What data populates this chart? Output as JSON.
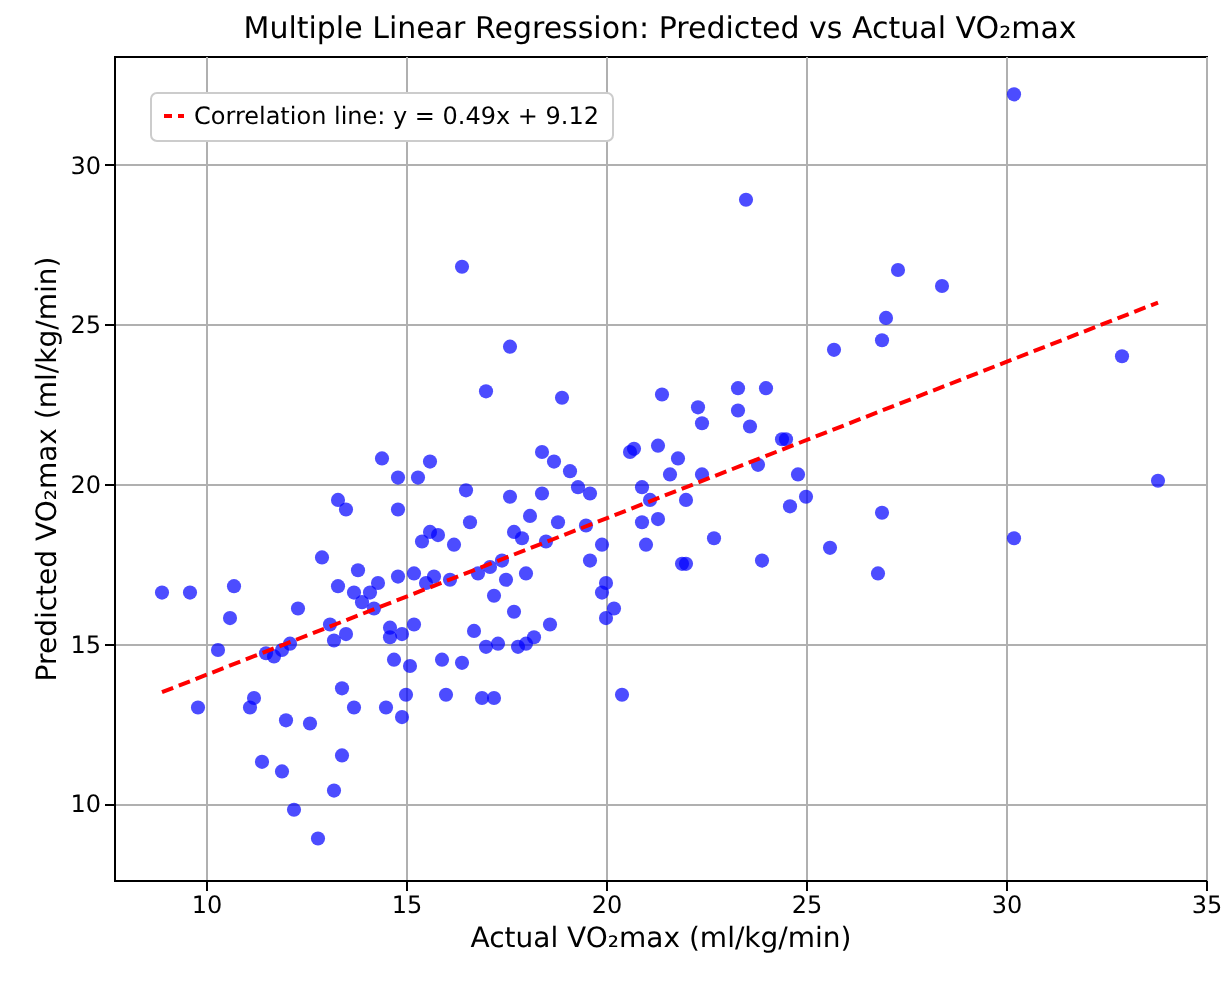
{
  "chart_data": {
    "type": "scatter",
    "title": "Multiple Linear Regression: Predicted vs Actual VO₂max",
    "xlabel": "Actual VO₂max (ml/kg/min)",
    "ylabel": "Predicted VO₂max (ml/kg/min)",
    "xlim": [
      7.7,
      35.0
    ],
    "ylim": [
      7.6,
      33.4
    ],
    "xticks": [
      10,
      15,
      20,
      25,
      30,
      35
    ],
    "yticks": [
      10,
      15,
      20,
      25,
      30
    ],
    "grid": true,
    "legend": "top left",
    "series": [
      {
        "marker": "circle",
        "color": "#0000ff",
        "x": [
          8.9,
          9.6,
          9.8,
          10.3,
          10.6,
          10.7,
          11.1,
          11.2,
          11.4,
          11.5,
          11.7,
          11.9,
          11.9,
          12.0,
          12.1,
          12.2,
          12.3,
          12.6,
          12.8,
          12.9,
          13.1,
          13.2,
          13.2,
          13.3,
          13.4,
          13.4,
          13.3,
          13.5,
          13.5,
          13.7,
          13.7,
          13.8,
          13.9,
          14.1,
          14.2,
          14.3,
          14.4,
          14.5,
          14.6,
          14.6,
          14.7,
          14.8,
          14.8,
          14.8,
          14.9,
          14.9,
          15.0,
          15.1,
          15.2,
          15.2,
          15.3,
          15.4,
          15.5,
          15.6,
          15.6,
          15.7,
          15.8,
          15.9,
          16.0,
          16.1,
          16.2,
          16.4,
          16.4,
          16.5,
          16.6,
          16.7,
          16.8,
          16.9,
          17.0,
          17.0,
          17.1,
          17.2,
          17.2,
          17.3,
          17.4,
          17.5,
          17.6,
          17.7,
          17.6,
          17.7,
          17.8,
          17.9,
          18.0,
          18.0,
          18.1,
          18.2,
          18.4,
          18.4,
          18.5,
          18.6,
          18.7,
          18.8,
          18.9,
          19.1,
          19.3,
          19.5,
          19.6,
          19.6,
          19.9,
          19.9,
          20.0,
          20.0,
          20.2,
          20.4,
          20.6,
          20.7,
          20.9,
          20.9,
          21.0,
          21.1,
          21.3,
          21.3,
          21.4,
          21.6,
          21.8,
          21.9,
          22.0,
          22.0,
          22.3,
          22.4,
          22.4,
          22.7,
          23.3,
          23.3,
          23.5,
          23.6,
          23.8,
          23.9,
          24.0,
          24.4,
          24.5,
          24.6,
          24.8,
          25.0,
          25.6,
          25.7,
          26.8,
          26.9,
          26.9,
          27.0,
          27.3,
          28.4,
          30.2,
          30.2,
          32.9,
          33.8
        ],
        "values": [
          16.6,
          16.6,
          13.0,
          14.8,
          15.8,
          16.8,
          13.0,
          13.3,
          11.3,
          14.7,
          14.6,
          14.8,
          11.0,
          12.6,
          15.0,
          9.8,
          16.1,
          12.5,
          8.9,
          17.7,
          15.6,
          10.4,
          15.1,
          16.8,
          11.5,
          13.6,
          19.5,
          19.2,
          15.3,
          16.6,
          13.0,
          17.3,
          16.3,
          16.6,
          16.1,
          16.9,
          20.8,
          13.0,
          15.2,
          15.5,
          14.5,
          19.2,
          17.1,
          20.2,
          15.3,
          12.7,
          13.4,
          14.3,
          15.6,
          17.2,
          20.2,
          18.2,
          16.9,
          18.5,
          20.7,
          17.1,
          18.4,
          14.5,
          13.4,
          17.0,
          18.1,
          14.4,
          26.8,
          19.8,
          18.8,
          15.4,
          17.2,
          13.3,
          14.9,
          22.9,
          17.4,
          16.5,
          13.3,
          15.0,
          17.6,
          17.0,
          19.6,
          16.0,
          24.3,
          18.5,
          14.9,
          18.3,
          17.2,
          15.0,
          19.0,
          15.2,
          19.7,
          21.0,
          18.2,
          15.6,
          20.7,
          18.8,
          22.7,
          20.4,
          19.9,
          18.7,
          19.7,
          17.6,
          18.1,
          16.6,
          15.8,
          16.9,
          16.1,
          13.4,
          21.0,
          21.1,
          19.9,
          18.8,
          18.1,
          19.5,
          18.9,
          21.2,
          22.8,
          20.3,
          20.8,
          17.5,
          19.5,
          17.5,
          22.4,
          21.9,
          20.3,
          18.3,
          23.0,
          22.3,
          28.9,
          21.8,
          20.6,
          17.6,
          23.0,
          21.4,
          21.4,
          19.3,
          20.3,
          19.6,
          18.0,
          24.2,
          17.2,
          19.1,
          24.5,
          25.2,
          26.7,
          26.2,
          32.2,
          18.3,
          24.0,
          20.1
        ]
      },
      {
        "type": "line",
        "name": "Correlation line: y = 0.49x + 9.12",
        "color": "#ff0000",
        "line_style": "dashed",
        "x": [
          8.9,
          33.8
        ],
        "values": [
          13.48,
          25.68
        ]
      }
    ]
  }
}
